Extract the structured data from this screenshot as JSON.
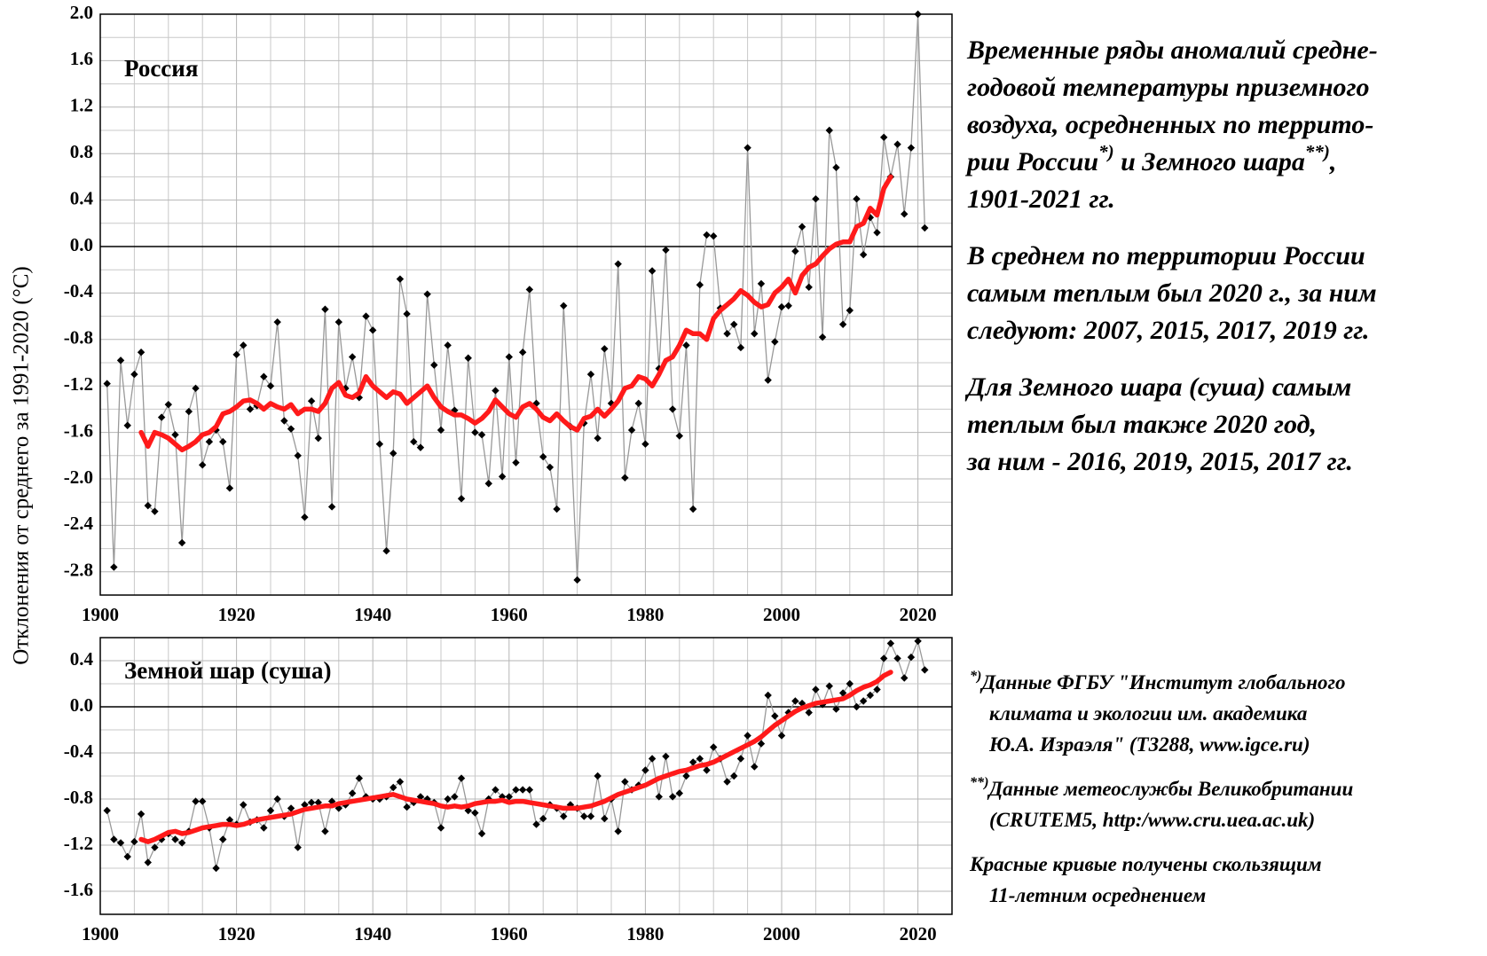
{
  "chart_data": [
    {
      "type": "line",
      "label": "Россия",
      "ylabel": "Отклонения от среднего за 1991-2020 (°C)",
      "x": [
        1901,
        1902,
        1903,
        1904,
        1905,
        1906,
        1907,
        1908,
        1909,
        1910,
        1911,
        1912,
        1913,
        1914,
        1915,
        1916,
        1917,
        1918,
        1919,
        1920,
        1921,
        1922,
        1923,
        1924,
        1925,
        1926,
        1927,
        1928,
        1929,
        1930,
        1931,
        1932,
        1933,
        1934,
        1935,
        1936,
        1937,
        1938,
        1939,
        1940,
        1941,
        1942,
        1943,
        1944,
        1945,
        1946,
        1947,
        1948,
        1949,
        1950,
        1951,
        1952,
        1953,
        1954,
        1955,
        1956,
        1957,
        1958,
        1959,
        1960,
        1961,
        1962,
        1963,
        1964,
        1965,
        1966,
        1967,
        1968,
        1969,
        1970,
        1971,
        1972,
        1973,
        1974,
        1975,
        1976,
        1977,
        1978,
        1979,
        1980,
        1981,
        1982,
        1983,
        1984,
        1985,
        1986,
        1987,
        1988,
        1989,
        1990,
        1991,
        1992,
        1993,
        1994,
        1995,
        1996,
        1997,
        1998,
        1999,
        2000,
        2001,
        2002,
        2003,
        2004,
        2005,
        2006,
        2007,
        2008,
        2009,
        2010,
        2011,
        2012,
        2013,
        2014,
        2015,
        2016,
        2017,
        2018,
        2019,
        2020,
        2021
      ],
      "series": [
        {
          "color": "#999999",
          "marker": "diamond",
          "values": [
            -1.18,
            -2.76,
            -0.98,
            -1.54,
            -1.1,
            -0.91,
            -2.23,
            -2.28,
            -1.47,
            -1.36,
            -1.62,
            -2.55,
            -1.42,
            -1.22,
            -1.88,
            -1.68,
            -1.58,
            -1.68,
            -2.08,
            -0.93,
            -0.85,
            -1.4,
            -1.37,
            -1.12,
            -1.2,
            -0.65,
            -1.5,
            -1.57,
            -1.8,
            -2.33,
            -1.33,
            -1.65,
            -0.54,
            -2.24,
            -0.65,
            -1.22,
            -0.95,
            -1.3,
            -0.6,
            -0.72,
            -1.7,
            -2.62,
            -1.78,
            -0.28,
            -0.58,
            -1.68,
            -1.73,
            -0.41,
            -1.02,
            -1.58,
            -0.85,
            -1.41,
            -2.17,
            -0.96,
            -1.6,
            -1.62,
            -2.04,
            -1.24,
            -1.98,
            -0.95,
            -1.86,
            -0.91,
            -0.37,
            -1.35,
            -1.81,
            -1.9,
            -2.26,
            -0.51,
            -1.55,
            -2.87,
            -1.52,
            -1.1,
            -1.65,
            -0.88,
            -1.35,
            -0.15,
            -1.99,
            -1.58,
            -1.35,
            -1.7,
            -0.21,
            -1.05,
            -0.03,
            -1.4,
            -1.63,
            -0.85,
            -2.26,
            -0.33,
            0.1,
            0.09,
            -0.53,
            -0.75,
            -0.67,
            -0.87,
            0.85,
            -0.75,
            -0.32,
            -1.15,
            -0.82,
            -0.52,
            -0.51,
            -0.04,
            0.17,
            -0.35,
            0.41,
            -0.78,
            1.0,
            0.68,
            -0.67,
            -0.55,
            0.41,
            -0.07,
            0.25,
            0.12,
            0.94,
            0.6,
            0.88,
            0.28,
            0.85,
            2.0,
            0.16
          ]
        },
        {
          "color": "#ff1a1a",
          "values": [
            null,
            null,
            null,
            null,
            null,
            -1.6,
            -1.72,
            -1.6,
            -1.62,
            -1.65,
            -1.7,
            -1.75,
            -1.72,
            -1.68,
            -1.62,
            -1.6,
            -1.55,
            -1.44,
            -1.42,
            -1.38,
            -1.33,
            -1.32,
            -1.35,
            -1.4,
            -1.35,
            -1.38,
            -1.4,
            -1.36,
            -1.44,
            -1.4,
            -1.4,
            -1.42,
            -1.35,
            -1.22,
            -1.17,
            -1.28,
            -1.3,
            -1.26,
            -1.12,
            -1.2,
            -1.25,
            -1.3,
            -1.25,
            -1.27,
            -1.35,
            -1.3,
            -1.25,
            -1.2,
            -1.3,
            -1.38,
            -1.42,
            -1.45,
            -1.45,
            -1.48,
            -1.52,
            -1.48,
            -1.42,
            -1.32,
            -1.38,
            -1.44,
            -1.47,
            -1.38,
            -1.35,
            -1.4,
            -1.47,
            -1.5,
            -1.44,
            -1.5,
            -1.55,
            -1.58,
            -1.48,
            -1.46,
            -1.4,
            -1.46,
            -1.4,
            -1.33,
            -1.22,
            -1.2,
            -1.12,
            -1.14,
            -1.2,
            -1.1,
            -0.98,
            -0.95,
            -0.85,
            -0.72,
            -0.75,
            -0.75,
            -0.8,
            -0.62,
            -0.55,
            -0.5,
            -0.45,
            -0.38,
            -0.42,
            -0.48,
            -0.52,
            -0.5,
            -0.4,
            -0.35,
            -0.28,
            -0.4,
            -0.25,
            -0.18,
            -0.15,
            -0.08,
            -0.02,
            0.02,
            0.04,
            0.04,
            0.17,
            0.2,
            0.33,
            0.27,
            0.5,
            0.6,
            null,
            null,
            null,
            null,
            null
          ]
        }
      ],
      "xlim": [
        1900,
        2025
      ],
      "xticks": [
        1900,
        1920,
        1940,
        1960,
        1980,
        2000,
        2020
      ],
      "ylim": [
        -3.0,
        2.0
      ],
      "yticks": [
        {
          "value": 2,
          "label": "2.0"
        },
        1.6,
        1.2,
        0.8,
        0.4,
        {
          "value": 0,
          "label": "0.0"
        },
        -0.4,
        -0.8,
        -1.2,
        -1.6,
        {
          "value": -2,
          "label": "-2.0"
        },
        -2.4,
        -2.8
      ],
      "grid": true
    },
    {
      "type": "line",
      "label": "Земной шар (суша)",
      "x": [
        1901,
        1902,
        1903,
        1904,
        1905,
        1906,
        1907,
        1908,
        1909,
        1910,
        1911,
        1912,
        1913,
        1914,
        1915,
        1916,
        1917,
        1918,
        1919,
        1920,
        1921,
        1922,
        1923,
        1924,
        1925,
        1926,
        1927,
        1928,
        1929,
        1930,
        1931,
        1932,
        1933,
        1934,
        1935,
        1936,
        1937,
        1938,
        1939,
        1940,
        1941,
        1942,
        1943,
        1944,
        1945,
        1946,
        1947,
        1948,
        1949,
        1950,
        1951,
        1952,
        1953,
        1954,
        1955,
        1956,
        1957,
        1958,
        1959,
        1960,
        1961,
        1962,
        1963,
        1964,
        1965,
        1966,
        1967,
        1968,
        1969,
        1970,
        1971,
        1972,
        1973,
        1974,
        1975,
        1976,
        1977,
        1978,
        1979,
        1980,
        1981,
        1982,
        1983,
        1984,
        1985,
        1986,
        1987,
        1988,
        1989,
        1990,
        1991,
        1992,
        1993,
        1994,
        1995,
        1996,
        1997,
        1998,
        1999,
        2000,
        2001,
        2002,
        2003,
        2004,
        2005,
        2006,
        2007,
        2008,
        2009,
        2010,
        2011,
        2012,
        2013,
        2014,
        2015,
        2016,
        2017,
        2018,
        2019,
        2020,
        2021
      ],
      "series": [
        {
          "color": "#999999",
          "marker": "diamond",
          "values": [
            -0.9,
            -1.15,
            -1.18,
            -1.3,
            -1.17,
            -0.93,
            -1.35,
            -1.22,
            -1.15,
            -1.1,
            -1.15,
            -1.18,
            -1.08,
            -0.82,
            -0.82,
            -1.05,
            -1.4,
            -1.15,
            -0.98,
            -1.02,
            -0.85,
            -1.0,
            -0.98,
            -1.05,
            -0.9,
            -0.8,
            -0.95,
            -0.88,
            -1.22,
            -0.85,
            -0.83,
            -0.83,
            -1.08,
            -0.82,
            -0.88,
            -0.85,
            -0.75,
            -0.62,
            -0.78,
            -0.8,
            -0.8,
            -0.78,
            -0.7,
            -0.65,
            -0.87,
            -0.83,
            -0.78,
            -0.8,
            -0.83,
            -1.05,
            -0.8,
            -0.78,
            -0.62,
            -0.9,
            -0.92,
            -1.1,
            -0.8,
            -0.72,
            -0.78,
            -0.78,
            -0.72,
            -0.72,
            -0.72,
            -1.02,
            -0.97,
            -0.85,
            -0.88,
            -0.95,
            -0.85,
            -0.88,
            -0.95,
            -0.95,
            -0.6,
            -0.97,
            -0.8,
            -1.08,
            -0.65,
            -0.72,
            -0.68,
            -0.55,
            -0.45,
            -0.78,
            -0.43,
            -0.78,
            -0.75,
            -0.6,
            -0.48,
            -0.45,
            -0.55,
            -0.35,
            -0.45,
            -0.65,
            -0.6,
            -0.45,
            -0.25,
            -0.52,
            -0.32,
            0.1,
            -0.08,
            -0.25,
            -0.05,
            0.05,
            0.03,
            -0.05,
            0.15,
            0.02,
            0.18,
            -0.02,
            0.12,
            0.2,
            0.0,
            0.05,
            0.1,
            0.15,
            0.42,
            0.55,
            0.42,
            0.25,
            0.43,
            0.57,
            0.32
          ]
        },
        {
          "color": "#ff1a1a",
          "values": [
            null,
            null,
            null,
            null,
            null,
            -1.15,
            -1.17,
            -1.15,
            -1.12,
            -1.09,
            -1.08,
            -1.1,
            -1.09,
            -1.07,
            -1.05,
            -1.04,
            -1.03,
            -1.02,
            -1.02,
            -1.03,
            -1.02,
            -1.0,
            -0.98,
            -0.97,
            -0.96,
            -0.95,
            -0.94,
            -0.93,
            -0.91,
            -0.89,
            -0.88,
            -0.87,
            -0.86,
            -0.86,
            -0.84,
            -0.83,
            -0.82,
            -0.81,
            -0.8,
            -0.79,
            -0.78,
            -0.77,
            -0.76,
            -0.78,
            -0.8,
            -0.81,
            -0.82,
            -0.83,
            -0.84,
            -0.86,
            -0.87,
            -0.86,
            -0.87,
            -0.86,
            -0.84,
            -0.83,
            -0.82,
            -0.82,
            -0.81,
            -0.83,
            -0.82,
            -0.82,
            -0.83,
            -0.84,
            -0.85,
            -0.86,
            -0.87,
            -0.88,
            -0.88,
            -0.88,
            -0.87,
            -0.86,
            -0.84,
            -0.82,
            -0.79,
            -0.76,
            -0.74,
            -0.72,
            -0.7,
            -0.68,
            -0.65,
            -0.62,
            -0.6,
            -0.58,
            -0.56,
            -0.55,
            -0.53,
            -0.51,
            -0.5,
            -0.48,
            -0.45,
            -0.42,
            -0.39,
            -0.36,
            -0.33,
            -0.3,
            -0.26,
            -0.21,
            -0.16,
            -0.12,
            -0.08,
            -0.04,
            -0.01,
            0.01,
            0.03,
            0.04,
            0.05,
            0.06,
            0.07,
            0.1,
            0.14,
            0.17,
            0.19,
            0.22,
            0.27,
            0.3,
            null,
            null,
            null,
            null,
            null
          ]
        }
      ],
      "xlim": [
        1900,
        2025
      ],
      "xticks": [
        1900,
        1920,
        1940,
        1960,
        1980,
        2000,
        2020
      ],
      "ylim": [
        -1.8,
        0.6
      ],
      "yticks": [
        0.4,
        {
          "value": 0,
          "label": "0.0"
        },
        -0.4,
        -0.8,
        -1.2,
        -1.6
      ],
      "grid": true
    }
  ],
  "notes": [
    [
      [
        "Временные ряды аномалий средне-"
      ],
      [
        "годовой температуры приземного"
      ],
      [
        "воздуха, осредненных по террито-"
      ],
      [
        "рии России",
        "*)",
        " и  Земного шара",
        "**)",
        ","
      ],
      [
        "1901-2021 гг."
      ]
    ],
    [
      [
        "В среднем по территории России"
      ],
      [
        "самым теплым был 2020 г., за ним"
      ],
      [
        "следуют: 2007, 2015, 2017, 2019 гг."
      ]
    ],
    [
      [
        "Для Земного шара (суша) самым"
      ],
      [
        "теплым был также 2020 год,"
      ],
      [
        "за ним - 2016, 2019, 2015, 2017 гг."
      ]
    ]
  ],
  "footnotes": [
    [
      [
        "*)",
        "Данные ФГБУ \"Институт глобального"
      ],
      [
        "климата и экологии им. академика"
      ],
      [
        "Ю.А. Израэля\" (Т3288, www.igce.ru)"
      ]
    ],
    [
      [
        "**)",
        "Данные метеослужбы Великобритании"
      ],
      [
        "(CRUTEM5, http:/www.cru.uea.ac.uk)"
      ]
    ],
    [
      [
        "Красные кривые получены скользящим"
      ],
      [
        "11-летним осреднением"
      ]
    ]
  ]
}
